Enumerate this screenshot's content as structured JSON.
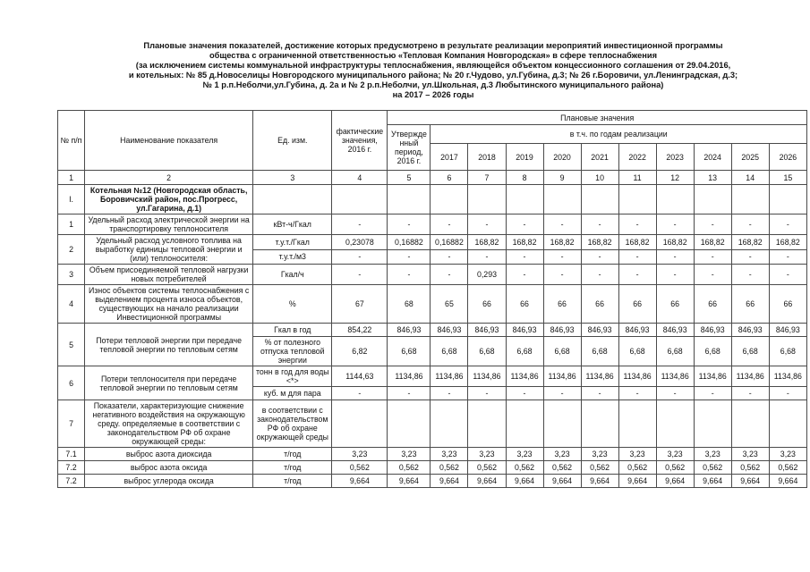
{
  "page_title_lines": [
    "Плановые значения показателей, достижение которых предусмотрено в результате реализации мероприятий инвестиционной программы",
    "общества с ограниченной ответственностью   «Тепловая Компания Новгородская»  в сфере теплоснабжения",
    "(за исключением  системы коммунальной инфраструктуры теплоснабжения, являющейся объектом концессионного соглашения от 29.04.2016,",
    "и котельных:   № 85  д.Новоселицы   Новгородского муниципального района; № 20 г.Чудово, ул.Губина, д.3; № 26 г.Боровичи, ул.Ленинградская, д.3;",
    "№ 1 р.п.Неболчи,ул.Губина, д. 2а  и № 2 р.п.Неболчи, ул.Школьная, д.3 Любытинского муниципального района)",
    "на  2017 – 2026 годы"
  ],
  "table": {
    "header": {
      "col_num": "№ п/п",
      "col_name": "Наименование показателя",
      "col_unit": "Ед. изм.",
      "col_fact": "фактические значения, 2016 г.",
      "planned_group": "Плановые значения",
      "col_approved": "Утвержденный период, 2016 г.",
      "years_group": "в т.ч. по годам реализации",
      "years": [
        "2017",
        "2018",
        "2019",
        "2020",
        "2021",
        "2022",
        "2023",
        "2024",
        "2025",
        "2026"
      ],
      "col_numbers": [
        "1",
        "2",
        "3",
        "4",
        "5",
        "6",
        "7",
        "8",
        "9",
        "10",
        "11",
        "12",
        "13",
        "14",
        "15"
      ]
    },
    "rows": [
      {
        "num": "I.",
        "section": true,
        "name": "Котельная №12 (Новгородская область, Боровичский район,  пос.Прогресс, ул.Гагарина, д.1)",
        "subrows": [
          {
            "unit": "",
            "values": [
              "",
              "",
              "",
              "",
              "",
              "",
              "",
              "",
              "",
              "",
              "",
              ""
            ]
          }
        ]
      },
      {
        "num": "1",
        "name": "Удельный расход электрической энергии на транспортировку теплоносителя",
        "subrows": [
          {
            "unit": "кВт-ч/Гкал",
            "values": [
              "-",
              "-",
              "-",
              "-",
              "-",
              "-",
              "-",
              "-",
              "-",
              "-",
              "-",
              "-"
            ]
          }
        ]
      },
      {
        "num": "2",
        "name": "Удельный расход условного топлива на выработку единицы тепловой энергии и (или) теплоносителя:",
        "subrows": [
          {
            "unit": "т.у.т./Гкал",
            "values": [
              "0,23078",
              "0,16882",
              "0,16882",
              "168,82",
              "168,82",
              "168,82",
              "168,82",
              "168,82",
              "168,82",
              "168,82",
              "168,82",
              "168,82"
            ]
          },
          {
            "unit": "т.у.т./м3",
            "values": [
              "-",
              "-",
              "-",
              "-",
              "-",
              "-",
              "-",
              "-",
              "-",
              "-",
              "-",
              "-"
            ]
          }
        ]
      },
      {
        "num": "3",
        "name": "Объем присоединяемой тепловой нагрузки новых потребителей",
        "subrows": [
          {
            "unit": "Гкал/ч",
            "values": [
              "-",
              "-",
              "-",
              "0,293",
              "-",
              "-",
              "-",
              "-",
              "-",
              "-",
              "-",
              "-"
            ]
          }
        ]
      },
      {
        "num": "4",
        "name": "Износ объектов системы теплоснабжения с выделением процента износа объектов, существующих на начало реализации Инвестиционной программы",
        "subrows": [
          {
            "unit": "%",
            "values": [
              "67",
              "68",
              "65",
              "66",
              "66",
              "66",
              "66",
              "66",
              "66",
              "66",
              "66",
              "66"
            ]
          }
        ]
      },
      {
        "num": "5",
        "name": "Потери тепловой энергии при передаче тепловой энергии по тепловым сетям",
        "subrows": [
          {
            "unit": "Гкал в год",
            "values": [
              "854,22",
              "846,93",
              "846,93",
              "846,93",
              "846,93",
              "846,93",
              "846,93",
              "846,93",
              "846,93",
              "846,93",
              "846,93",
              "846,93"
            ]
          },
          {
            "unit": "% от полезного отпуска тепловой энергии",
            "values": [
              "6,82",
              "6,68",
              "6,68",
              "6,68",
              "6,68",
              "6,68",
              "6,68",
              "6,68",
              "6,68",
              "6,68",
              "6,68",
              "6,68"
            ]
          }
        ]
      },
      {
        "num": "6",
        "name": "Потери теплоносителя при передаче тепловой энергии по тепловым сетям",
        "subrows": [
          {
            "unit": "тонн в год для воды  <*>",
            "values": [
              "1144,63",
              "1134,86",
              "1134,86",
              "1134,86",
              "1134,86",
              "1134,86",
              "1134,86",
              "1134,86",
              "1134,86",
              "1134,86",
              "1134,86",
              "1134,86"
            ]
          },
          {
            "unit": "куб. м для пара",
            "values": [
              "-",
              "-",
              "-",
              "-",
              "-",
              "-",
              "-",
              "-",
              "-",
              "-",
              "-",
              "-"
            ]
          }
        ]
      },
      {
        "num": "7",
        "name": "Показатели, характеризующие снижение негативного воздействия на окружающую среду. определяемые в соответствии с законодательством РФ об охране окружающей среды:",
        "subrows": [
          {
            "unit": "в соответствии с законодательством РФ об охране окружающей среды",
            "values": [
              "",
              "",
              "",
              "",
              "",
              "",
              "",
              "",
              "",
              "",
              "",
              ""
            ]
          }
        ]
      },
      {
        "num": "7.1",
        "name": "выброс азота диоксида",
        "subrows": [
          {
            "unit": "т/год",
            "values": [
              "3,23",
              "3,23",
              "3,23",
              "3,23",
              "3,23",
              "3,23",
              "3,23",
              "3,23",
              "3,23",
              "3,23",
              "3,23",
              "3,23"
            ]
          }
        ]
      },
      {
        "num": "7.2",
        "name": "выброс азота оксида",
        "subrows": [
          {
            "unit": "т/год",
            "values": [
              "0,562",
              "0,562",
              "0,562",
              "0,562",
              "0,562",
              "0,562",
              "0,562",
              "0,562",
              "0,562",
              "0,562",
              "0,562",
              "0,562"
            ]
          }
        ]
      },
      {
        "num": "7.2",
        "name": "выброс углерода оксида",
        "subrows": [
          {
            "unit": "т/год",
            "values": [
              "9,664",
              "9,664",
              "9,664",
              "9,664",
              "9,664",
              "9,664",
              "9,664",
              "9,664",
              "9,664",
              "9,664",
              "9,664",
              "9,664"
            ]
          }
        ]
      }
    ]
  }
}
